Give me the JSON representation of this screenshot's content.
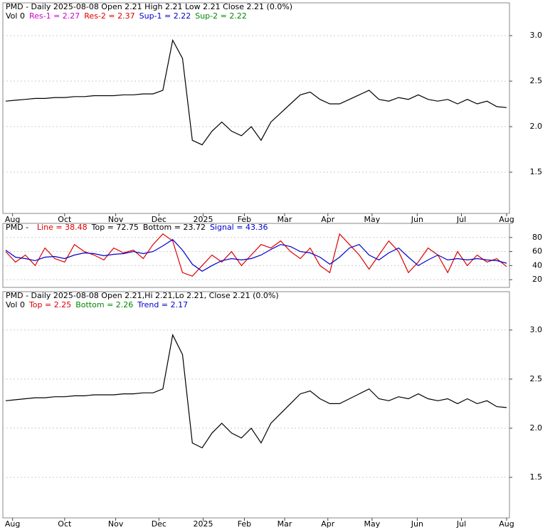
{
  "chart_data": [
    {
      "type": "line",
      "title": "PMD - Daily 2025-08-08 Open 2.21  High 2.21  Low 2.21  Close 2.21 (0.0%)",
      "legend": [
        {
          "text": "Vol 0",
          "color": "#000000"
        },
        {
          "text": "Res-1 = 2.27",
          "color": "#cc00cc"
        },
        {
          "text": "Res-2 = 2.37",
          "color": "#dd0000"
        },
        {
          "text": "Sup-1 = 2.22",
          "color": "#0000cc"
        },
        {
          "text": "Sup-2 = 2.22",
          "color": "#008800"
        }
      ],
      "x": [
        0,
        1,
        2,
        3,
        4,
        5,
        6,
        7,
        8,
        9,
        10,
        11,
        12,
        13,
        14,
        15,
        16,
        17,
        18,
        19,
        20,
        21,
        22,
        23,
        24,
        25,
        26,
        27,
        28,
        29,
        30,
        31,
        32,
        33,
        34,
        35,
        36,
        37,
        38,
        39,
        40,
        41,
        42,
        43,
        44,
        45,
        46,
        47,
        48,
        49,
        50,
        51
      ],
      "series": [
        {
          "name": "Close",
          "color": "#000000",
          "values": [
            2.28,
            2.29,
            2.3,
            2.31,
            2.31,
            2.32,
            2.32,
            2.33,
            2.33,
            2.34,
            2.34,
            2.34,
            2.35,
            2.35,
            2.36,
            2.36,
            2.4,
            2.95,
            2.75,
            1.85,
            1.8,
            1.95,
            2.05,
            1.95,
            1.9,
            2.0,
            1.85,
            2.05,
            2.15,
            2.25,
            2.35,
            2.38,
            2.3,
            2.25,
            2.25,
            2.3,
            2.35,
            2.4,
            2.3,
            2.28,
            2.32,
            2.3,
            2.35,
            2.3,
            2.28,
            2.3,
            2.25,
            2.3,
            2.25,
            2.28,
            2.22,
            2.21
          ]
        }
      ],
      "xlim": [
        0,
        51
      ],
      "xticks": [
        {
          "value": 0.7,
          "label": "Aug"
        },
        {
          "value": 6,
          "label": "Oct"
        },
        {
          "value": 11.2,
          "label": "Nov"
        },
        {
          "value": 15.6,
          "label": "Dec"
        },
        {
          "value": 20.1,
          "label": "2025"
        },
        {
          "value": 24.3,
          "label": "Feb"
        },
        {
          "value": 28.4,
          "label": "Mar"
        },
        {
          "value": 32.8,
          "label": "Apr"
        },
        {
          "value": 37.3,
          "label": "May"
        },
        {
          "value": 41.9,
          "label": "Jun"
        },
        {
          "value": 46.4,
          "label": "Jul"
        },
        {
          "value": 51,
          "label": "Aug"
        }
      ],
      "ylim": [
        1.047,
        3.36
      ],
      "yticks": [
        {
          "value": 3,
          "label": "3.0"
        },
        2.5,
        {
          "value": 2,
          "label": "2.0"
        },
        1.5
      ]
    },
    {
      "type": "line",
      "title": "PMD - ",
      "legend": [
        {
          "text": "Line = 38.48",
          "color": "#dd0000"
        },
        {
          "text": "Top = 72.75",
          "color": "#000000"
        },
        {
          "text": "Bottom = 23.72",
          "color": "#000000"
        },
        {
          "text": "Signal = 43.36",
          "color": "#0000cc"
        }
      ],
      "x": [
        0,
        1,
        2,
        3,
        4,
        5,
        6,
        7,
        8,
        9,
        10,
        11,
        12,
        13,
        14,
        15,
        16,
        17,
        18,
        19,
        20,
        21,
        22,
        23,
        24,
        25,
        26,
        27,
        28,
        29,
        30,
        31,
        32,
        33,
        34,
        35,
        36,
        37,
        38,
        39,
        40,
        41,
        42,
        43,
        44,
        45,
        46,
        47,
        48,
        49,
        50,
        51
      ],
      "series": [
        {
          "name": "Line",
          "color": "#dd0000",
          "values": [
            60,
            45,
            55,
            40,
            65,
            50,
            45,
            70,
            60,
            55,
            48,
            65,
            58,
            62,
            50,
            70,
            85,
            75,
            30,
            25,
            40,
            55,
            45,
            60,
            40,
            55,
            70,
            65,
            75,
            60,
            50,
            65,
            40,
            30,
            85,
            70,
            55,
            35,
            55,
            75,
            60,
            30,
            45,
            65,
            55,
            30,
            60,
            40,
            55,
            45,
            50,
            38.48
          ]
        },
        {
          "name": "Signal",
          "color": "#0000cc",
          "values": [
            62,
            52,
            50,
            47,
            52,
            53,
            50,
            55,
            58,
            57,
            54,
            56,
            57,
            60,
            57,
            60,
            68,
            77,
            62,
            42,
            32,
            40,
            47,
            50,
            48,
            50,
            55,
            63,
            70,
            67,
            60,
            58,
            52,
            42,
            52,
            65,
            70,
            55,
            48,
            58,
            65,
            52,
            40,
            48,
            55,
            48,
            50,
            48,
            50,
            48,
            47,
            43.36
          ]
        }
      ],
      "xlim": [
        0,
        51
      ],
      "ylim": [
        9,
        100
      ],
      "yticks": [
        80,
        60,
        40,
        20
      ]
    },
    {
      "type": "line",
      "title": "PMD - Daily 2025-08-08 Open 2.21,Hi 2.21,Lo 2.21, Close 2.21 (0.0%)",
      "legend": [
        {
          "text": "Vol 0",
          "color": "#000000"
        },
        {
          "text": "Top = 2.25",
          "color": "#dd0000"
        },
        {
          "text": "Bottom = 2.26",
          "color": "#008800"
        },
        {
          "text": "Trend = 2.17",
          "color": "#0000cc"
        }
      ],
      "x": [
        0,
        1,
        2,
        3,
        4,
        5,
        6,
        7,
        8,
        9,
        10,
        11,
        12,
        13,
        14,
        15,
        16,
        17,
        18,
        19,
        20,
        21,
        22,
        23,
        24,
        25,
        26,
        27,
        28,
        29,
        30,
        31,
        32,
        33,
        34,
        35,
        36,
        37,
        38,
        39,
        40,
        41,
        42,
        43,
        44,
        45,
        46,
        47,
        48,
        49,
        50,
        51
      ],
      "series": [
        {
          "name": "Close",
          "color": "#000000",
          "values": [
            2.28,
            2.29,
            2.3,
            2.31,
            2.31,
            2.32,
            2.32,
            2.33,
            2.33,
            2.34,
            2.34,
            2.34,
            2.35,
            2.35,
            2.36,
            2.36,
            2.4,
            2.95,
            2.75,
            1.85,
            1.8,
            1.95,
            2.05,
            1.95,
            1.9,
            2.0,
            1.85,
            2.05,
            2.15,
            2.25,
            2.35,
            2.38,
            2.3,
            2.25,
            2.25,
            2.3,
            2.35,
            2.4,
            2.3,
            2.28,
            2.32,
            2.3,
            2.35,
            2.3,
            2.28,
            2.3,
            2.25,
            2.3,
            2.25,
            2.28,
            2.22,
            2.21
          ]
        }
      ],
      "xlim": [
        0,
        51
      ],
      "xticks": [
        {
          "value": 0.7,
          "label": "Aug"
        },
        {
          "value": 6,
          "label": "Oct"
        },
        {
          "value": 11.2,
          "label": "Nov"
        },
        {
          "value": 15.6,
          "label": "Dec"
        },
        {
          "value": 20.1,
          "label": "2025"
        },
        {
          "value": 24.3,
          "label": "Feb"
        },
        {
          "value": 28.4,
          "label": "Mar"
        },
        {
          "value": 32.8,
          "label": "Apr"
        },
        {
          "value": 37.3,
          "label": "May"
        },
        {
          "value": 41.9,
          "label": "Jun"
        },
        {
          "value": 46.4,
          "label": "Jul"
        },
        {
          "value": 51,
          "label": "Aug"
        }
      ],
      "ylim": [
        1.087,
        3.39
      ],
      "yticks": [
        {
          "value": 3,
          "label": "3.0"
        },
        2.5,
        {
          "value": 2,
          "label": "2.0"
        },
        1.5
      ]
    }
  ]
}
